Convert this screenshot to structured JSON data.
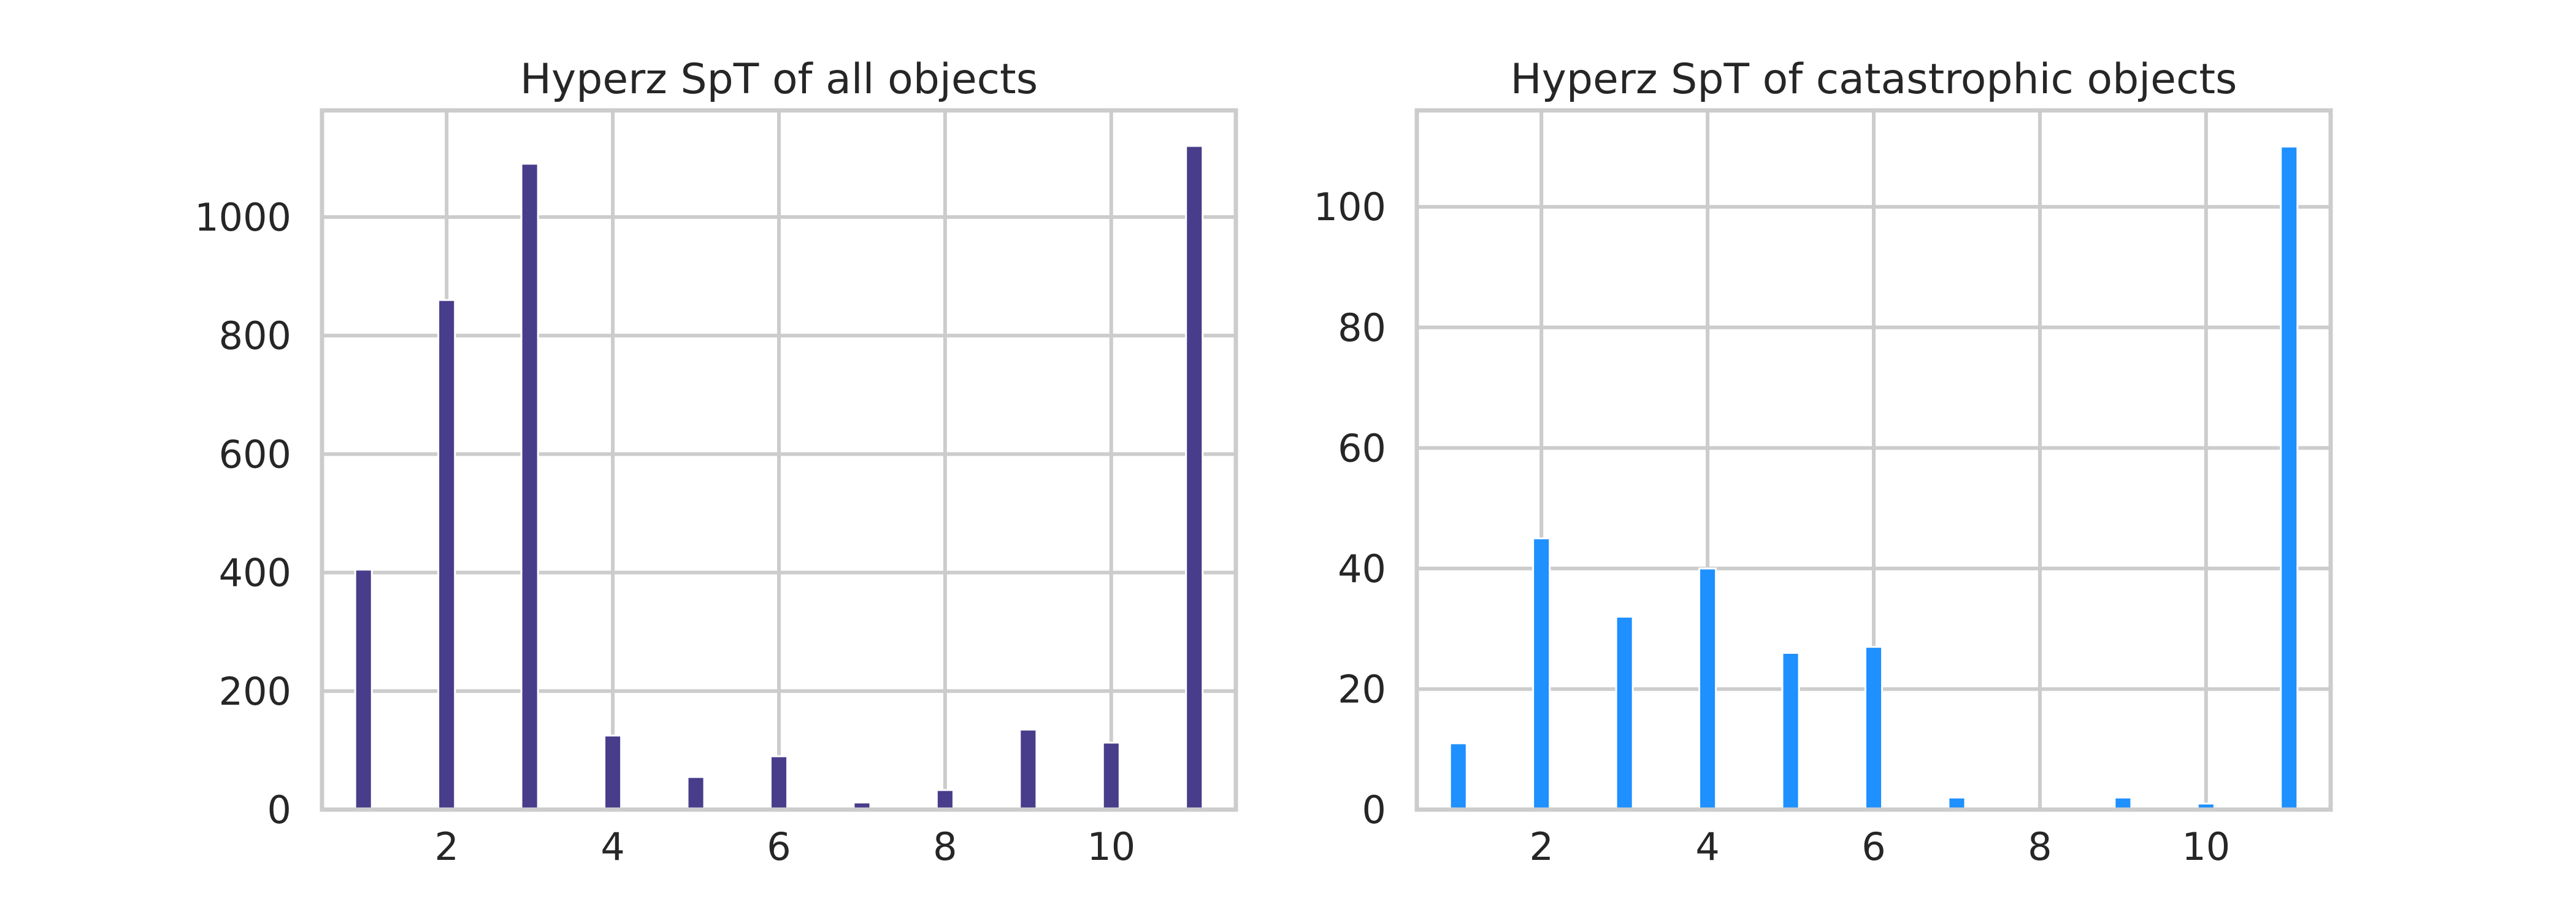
{
  "chart_data": [
    {
      "type": "bar",
      "title": "Hyperz SpT of all objects",
      "xlabel": "",
      "ylabel": "",
      "x": [
        1,
        2,
        3,
        4,
        5,
        6,
        7,
        8,
        9,
        10,
        11
      ],
      "values": [
        405,
        860,
        1090,
        125,
        55,
        90,
        12,
        33,
        135,
        113,
        1120
      ],
      "color": "#483d8b",
      "xlim": [
        0.5,
        11.5
      ],
      "ylim": [
        0,
        1180
      ],
      "xticks": [
        2,
        4,
        6,
        8,
        10
      ],
      "yticks": [
        0,
        200,
        400,
        600,
        800,
        1000
      ],
      "grid": true
    },
    {
      "type": "bar",
      "title": "Hyperz SpT of catastrophic objects",
      "xlabel": "",
      "ylabel": "",
      "x": [
        1,
        2,
        3,
        4,
        5,
        6,
        7,
        8,
        9,
        10,
        11
      ],
      "values": [
        11,
        45,
        32,
        40,
        26,
        27,
        2,
        0,
        2,
        1,
        110
      ],
      "color": "#1e90ff",
      "xlim": [
        0.5,
        11.5
      ],
      "ylim": [
        0,
        116
      ],
      "xticks": [
        2,
        4,
        6,
        8,
        10
      ],
      "yticks": [
        0,
        20,
        40,
        60,
        80,
        100
      ],
      "grid": true
    }
  ]
}
